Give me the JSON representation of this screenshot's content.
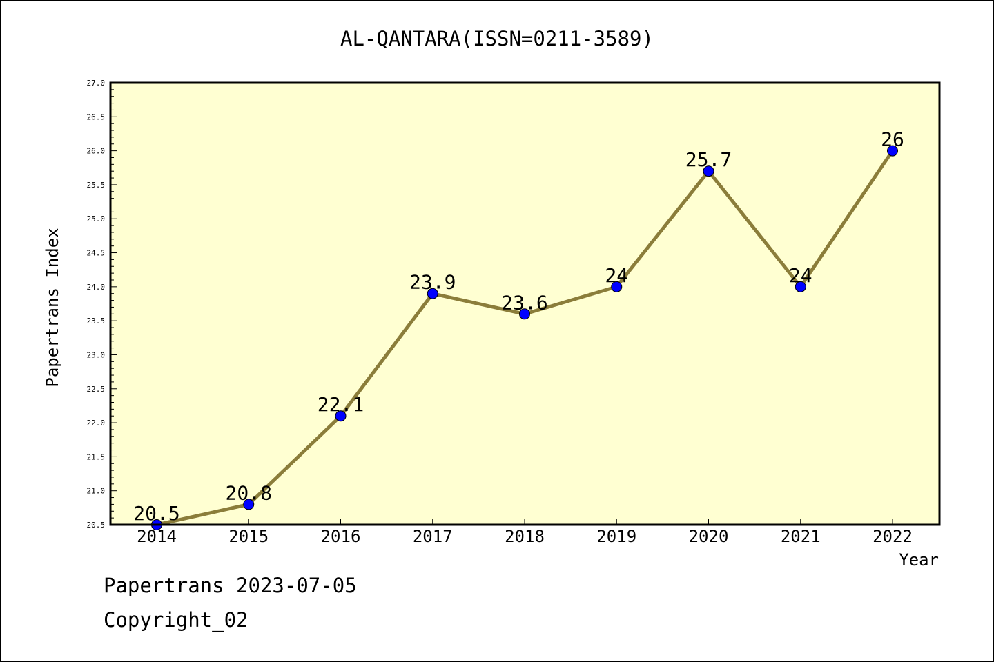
{
  "chart_data": {
    "type": "line",
    "title": "AL-QANTARA(ISSN=0211-3589)",
    "xlabel": "Year",
    "ylabel": "Papertrans Index",
    "x": [
      "2014",
      "2015",
      "2016",
      "2017",
      "2018",
      "2019",
      "2020",
      "2021",
      "2022"
    ],
    "series": [
      {
        "values": [
          20.5,
          20.8,
          22.1,
          23.9,
          23.6,
          24,
          25.7,
          24,
          26
        ],
        "data_labels": [
          "20.5",
          "20.8",
          "22.1",
          "23.9",
          "23.6",
          "24",
          "25.7",
          "24",
          "26"
        ]
      }
    ],
    "ylim": [
      20.5,
      27.0
    ],
    "yticks": [
      20.5,
      21.0,
      21.5,
      22.0,
      22.5,
      23.0,
      23.5,
      24.0,
      24.5,
      25.0,
      25.5,
      26.0,
      26.5,
      27.0
    ],
    "ytick_labels": [
      "20.5",
      "21.0",
      "21.5",
      "22.0",
      "22.5",
      "23.0",
      "23.5",
      "24.0",
      "24.5",
      "25.0",
      "25.5",
      "26.0",
      "26.5",
      "27.0"
    ],
    "grid": false,
    "legend": "none",
    "colors": {
      "plot_background": "#ffffd2",
      "line": "#8b7d3a",
      "marker": "#0000ff"
    }
  },
  "footer": {
    "line1": "Papertrans 2023-07-05",
    "line2": "Copyright_02"
  }
}
